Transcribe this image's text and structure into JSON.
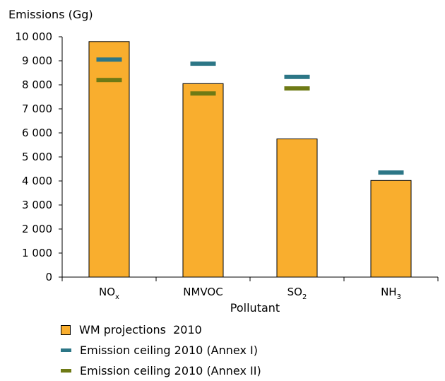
{
  "chart_data": {
    "type": "bar",
    "ylabel": "Emissions (Gg)",
    "xlabel": "Pollutant",
    "ylim": [
      0,
      10000
    ],
    "yticks": [
      0,
      1000,
      2000,
      3000,
      4000,
      5000,
      6000,
      7000,
      8000,
      9000,
      10000
    ],
    "ytick_labels": [
      "0",
      "1 000",
      "2 000",
      "3 000",
      "4 000",
      "5 000",
      "6 000",
      "7 000",
      "8 000",
      "9 000",
      "10 000"
    ],
    "categories": [
      {
        "main": "NO",
        "sub": "x"
      },
      {
        "main": "NMVOC",
        "sub": ""
      },
      {
        "main": "SO",
        "sub": "2"
      },
      {
        "main": "NH",
        "sub": "3"
      }
    ],
    "series": [
      {
        "name": "WM projections  2010",
        "kind": "bar",
        "color": "#F9AE2E",
        "values": [
          9800,
          8050,
          5750,
          4020
        ]
      },
      {
        "name": "Emission ceiling 2010 (Annex I)",
        "kind": "marker",
        "color": "#2C7686",
        "values": [
          9050,
          8880,
          8330,
          4350
        ]
      },
      {
        "name": "Emission ceiling 2010 (Annex II)",
        "kind": "marker",
        "color": "#6E7A15",
        "values": [
          8200,
          7640,
          7850,
          null
        ]
      }
    ],
    "grid": false,
    "legend_position": "bottom-left"
  }
}
